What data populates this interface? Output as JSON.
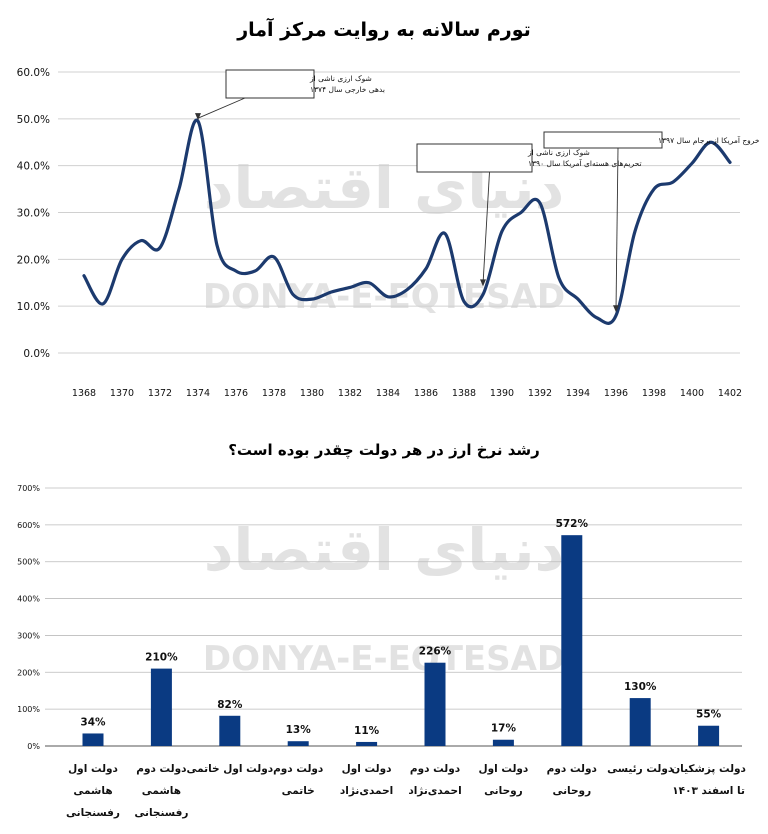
{
  "watermark": {
    "latin": "DONYA-E-EQTESAD",
    "persian": "دنیای اقتصاد"
  },
  "chart_data": [
    {
      "type": "line",
      "title": "تورم سالانه به روایت مرکز آمار",
      "x": [
        1368,
        1369,
        1370,
        1371,
        1372,
        1373,
        1374,
        1375,
        1376,
        1377,
        1378,
        1379,
        1380,
        1381,
        1382,
        1383,
        1384,
        1385,
        1386,
        1387,
        1388,
        1389,
        1390,
        1391,
        1392,
        1393,
        1394,
        1395,
        1396,
        1397,
        1398,
        1399,
        1400,
        1401,
        1402
      ],
      "xticks": [
        "1368",
        "1370",
        "1372",
        "1374",
        "1376",
        "1378",
        "1380",
        "1382",
        "1384",
        "1386",
        "1388",
        "1390",
        "1392",
        "1394",
        "1396",
        "1398",
        "1400",
        "1402"
      ],
      "series": [
        {
          "color": "#1c3a6e",
          "values": [
            16.5,
            10.5,
            20,
            24,
            22.5,
            35,
            49.5,
            23,
            17.5,
            17.5,
            20.5,
            12.5,
            11.5,
            13,
            14,
            15,
            12,
            13.5,
            18,
            25.5,
            11,
            12.5,
            26,
            30,
            32,
            16,
            11.5,
            7.5,
            8,
            26,
            35,
            36.5,
            40.5,
            45,
            40.7
          ]
        }
      ],
      "yticks": [
        "0.0%",
        "10.0%",
        "20.0%",
        "30.0%",
        "40.0%",
        "50.0%",
        "60.0%"
      ],
      "ylim": [
        0,
        60
      ],
      "grid": true,
      "annotations": [
        {
          "lines": [
            "شوک ارزی ناشی از",
            "بدهی خارجی سال ۱۳۷۴"
          ],
          "target_x": 1374,
          "target_y": 49.5
        },
        {
          "lines": [
            "شوک ارزی ناشی از",
            "تحریم‌های هسته‌ای آمریکا سال ۱۳۹۰"
          ],
          "target_x": 1389,
          "target_y": 14
        },
        {
          "lines": [
            "خروج آمریکا از برجام سال ۱۳۹۷"
          ],
          "target_x": 1396,
          "target_y": 8.5
        }
      ]
    },
    {
      "type": "bar",
      "title": "رشد نرخ ارز در هر دولت چقدر بوده است؟",
      "categories": [
        [
          "دولت اول",
          "هاشمی",
          "رفسنجانی"
        ],
        [
          "دولت دوم",
          "هاشمی",
          "رفسنجانی"
        ],
        [
          "دولت اول خاتمی"
        ],
        [
          "دولت دوم",
          "خاتمی"
        ],
        [
          "دولت اول",
          "احمدی‌نژاد"
        ],
        [
          "دولت دوم",
          "احمدی‌نژاد"
        ],
        [
          "دولت اول",
          "روحانی"
        ],
        [
          "دولت دوم",
          "روحانی"
        ],
        [
          "دولت رئیسی"
        ],
        [
          "دولت پزشکیان",
          "تا اسفند ۱۴۰۳"
        ]
      ],
      "values": [
        34,
        210,
        82,
        13,
        11,
        226,
        17,
        572,
        130,
        55
      ],
      "value_labels": [
        "34%",
        "210%",
        "82%",
        "13%",
        "11%",
        "226%",
        "17%",
        "572%",
        "130%",
        "55%"
      ],
      "yticks": [
        "0%",
        "100%",
        "200%",
        "300%",
        "400%",
        "500%",
        "600%",
        "700%"
      ],
      "ylim": [
        0,
        700
      ],
      "grid": true,
      "color": "#0a3a82"
    }
  ]
}
